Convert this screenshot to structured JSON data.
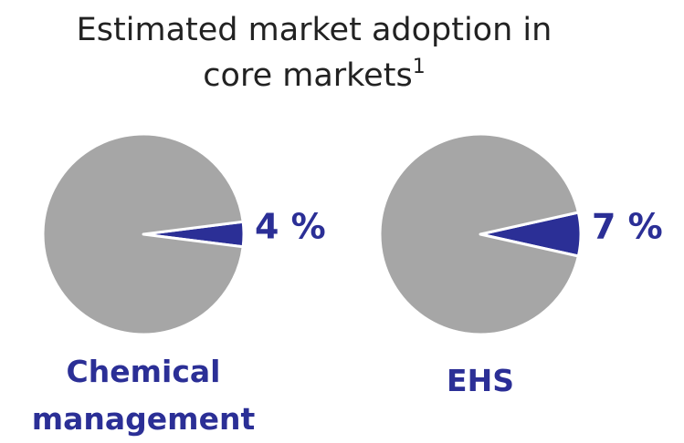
{
  "title": "Estimated market adoption in core markets",
  "title_note": "1",
  "chart_data": [
    {
      "type": "pie",
      "label": "Chemical management",
      "values": [
        4,
        96
      ],
      "value_labels": [
        "4 %",
        null
      ],
      "colors": [
        "#2b2f96",
        "#a6a6a6"
      ]
    },
    {
      "type": "pie",
      "label": "EHS",
      "values": [
        7,
        93
      ],
      "value_labels": [
        "7 %",
        null
      ],
      "colors": [
        "#2b2f96",
        "#a6a6a6"
      ]
    }
  ]
}
